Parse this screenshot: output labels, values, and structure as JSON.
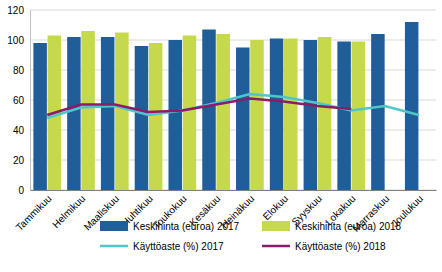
{
  "chart_data": {
    "type": "bar",
    "categories": [
      "Tammikuu",
      "Helmikuu",
      "Maaliskuu",
      "Huhtikuu",
      "Toukokuu",
      "Kesäkuu",
      "Heinäkuu",
      "Elokuu",
      "Syyskuu",
      "Lokakuu",
      "Marraskuu",
      "Joulukuu"
    ],
    "series": [
      {
        "name": "Keskihinta (euroa) 2017",
        "type": "bar",
        "color": "#1f5e98",
        "values": [
          98,
          102,
          102,
          96,
          100,
          107,
          95,
          101,
          100,
          99,
          104,
          112
        ]
      },
      {
        "name": "Keskihinta (euroa) 2018",
        "type": "bar",
        "color": "#c5d94b",
        "values": [
          103,
          106,
          105,
          98,
          103,
          104,
          100,
          101,
          102,
          99,
          null,
          null
        ]
      },
      {
        "name": "Käyttöaste (%) 2017",
        "type": "line",
        "color": "#4fc6c9",
        "values": [
          48,
          55,
          56,
          50,
          53,
          58,
          64,
          62,
          58,
          53,
          56,
          50
        ]
      },
      {
        "name": "Käyttöaste (%) 2018",
        "type": "line",
        "color": "#8c1b6c",
        "values": [
          50,
          57,
          57,
          52,
          53,
          57,
          61,
          59,
          56,
          54,
          null,
          null
        ]
      }
    ],
    "ylim": [
      0,
      120
    ],
    "yticks": [
      0,
      20,
      40,
      60,
      80,
      100,
      120
    ],
    "grid": true,
    "legend": "bottom"
  }
}
